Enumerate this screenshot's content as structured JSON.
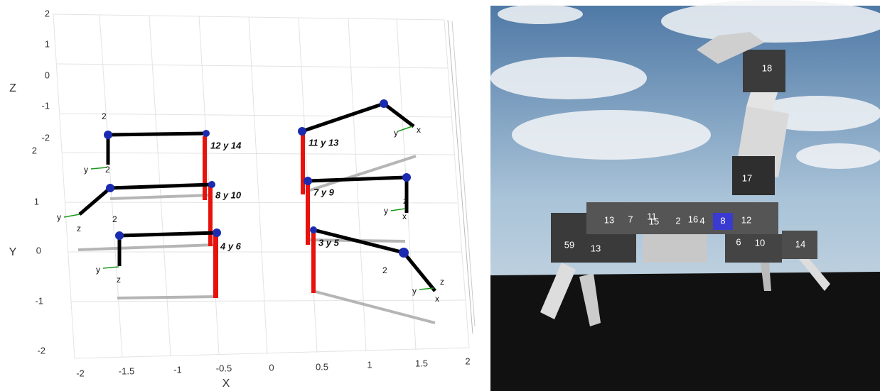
{
  "plot": {
    "axis_labels": {
      "x": "X",
      "y": "Y",
      "z": "Z"
    },
    "x_ticks": [
      "-2",
      "-1.5",
      "-1",
      "-0.5",
      "0",
      "0.5",
      "1",
      "1.5",
      "2"
    ],
    "y_ticks": [
      "2",
      "1",
      "0",
      "-1",
      "-2"
    ],
    "z_ticks": [
      "2",
      "1",
      "0",
      "-1",
      "-2"
    ],
    "leg_labels": [
      "12 y 14",
      "8 y 10",
      "4 y 6",
      "11 y 13",
      "7 y 9",
      "3 y 5"
    ],
    "frame_labels": [
      "2",
      "y",
      "2",
      "y",
      "z",
      "2",
      "y",
      "z",
      "y",
      "x",
      "y",
      "z",
      "x",
      "2",
      "y",
      "x",
      "z"
    ]
  },
  "simulation": {
    "servo_labels": [
      "18",
      "17",
      "13",
      "7",
      "11",
      "15",
      "2",
      "16",
      "4",
      "8",
      "12",
      "59",
      "13",
      "6",
      "10",
      "14"
    ]
  }
}
